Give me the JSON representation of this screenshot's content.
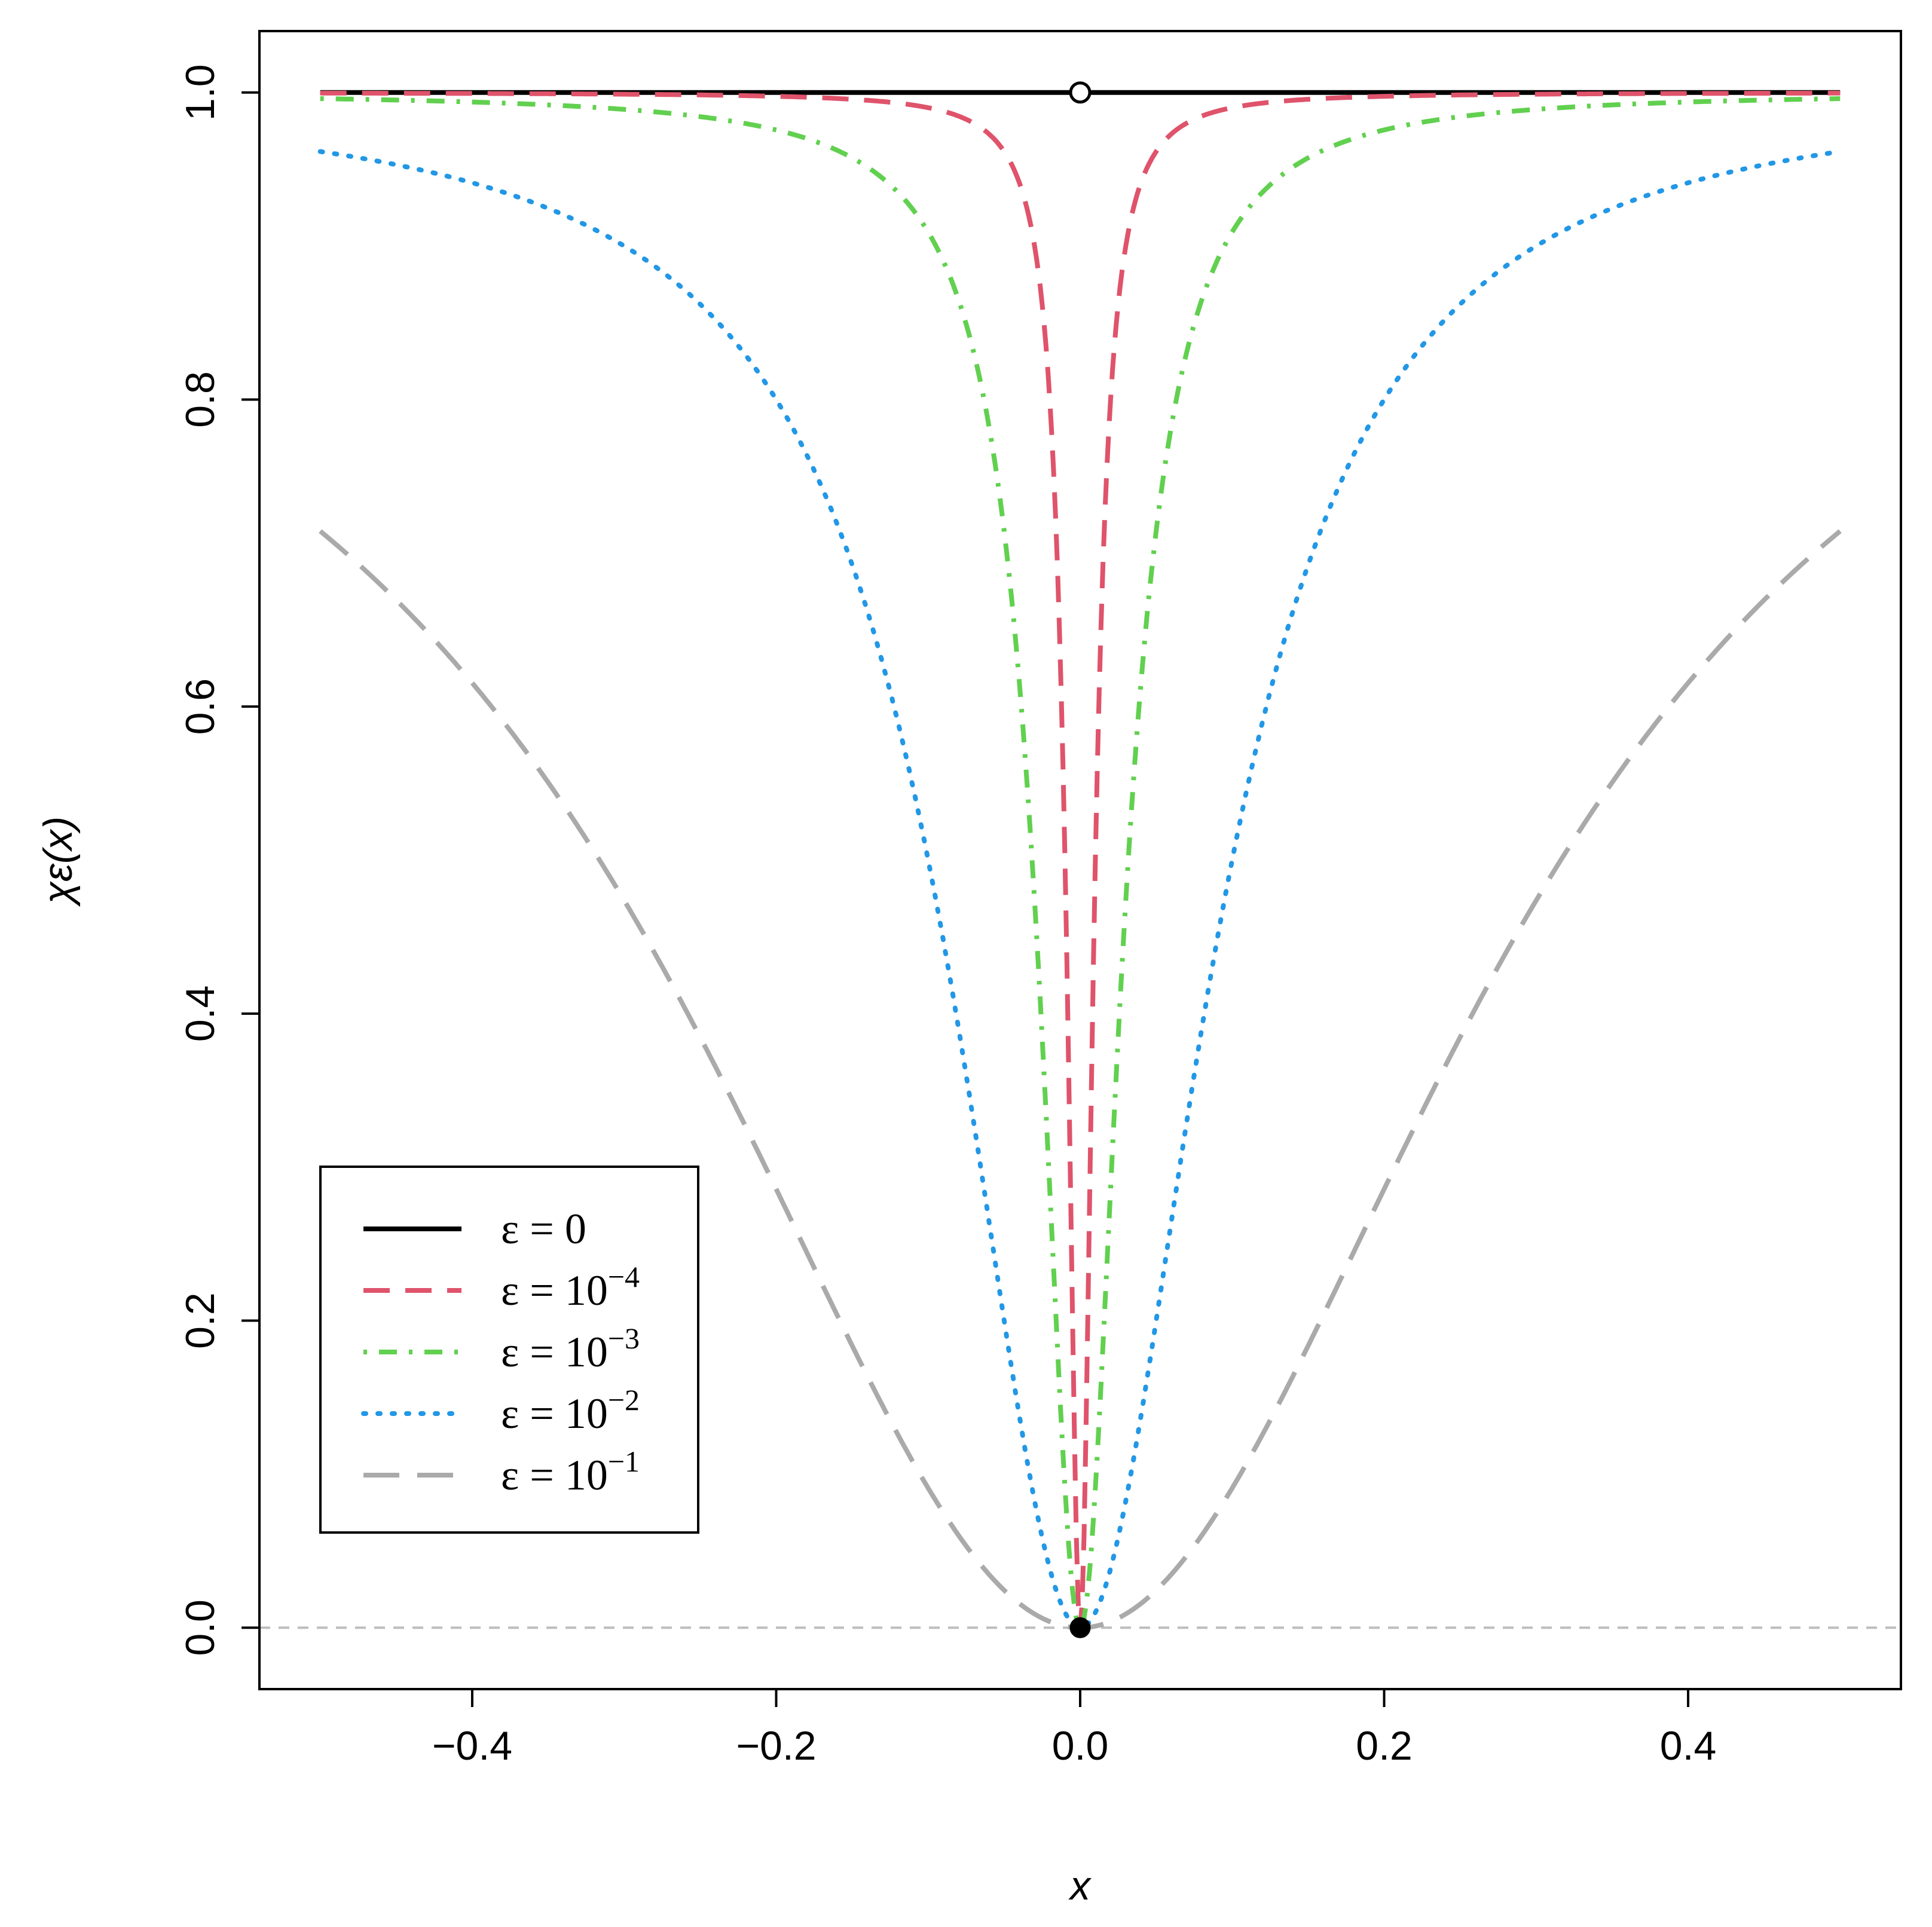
{
  "chart_data": {
    "type": "line",
    "xlabel": "x",
    "ylabel": "χε(x)",
    "xlim": [
      -0.54,
      0.54
    ],
    "ylim": [
      -0.04,
      1.04
    ],
    "xticks": [
      -0.4,
      -0.2,
      0.0,
      0.2,
      0.4
    ],
    "xtick_labels": [
      "−0.4",
      "−0.2",
      "0.0",
      "0.2",
      "0.4"
    ],
    "yticks": [
      0.0,
      0.2,
      0.4,
      0.6,
      0.8,
      1.0
    ],
    "ytick_labels": [
      "0.0",
      "0.2",
      "0.4",
      "0.6",
      "0.8",
      "1.0"
    ],
    "legend_position": "bottom-left",
    "reference_line": {
      "y": 0.0,
      "color": "#BEBEBE",
      "style": "dashed"
    },
    "series": [
      {
        "name": "ε = 0",
        "legend_base": "ε = 0",
        "legend_exp": "",
        "epsilon": 0,
        "color": "#000000",
        "style": "solid",
        "x_range": [
          -0.5,
          0.5
        ],
        "y_constant": 1.0,
        "open_point": [
          0.0,
          1.0
        ],
        "filled_point": [
          0.0,
          0.0
        ]
      },
      {
        "name": "ε = 10^−4",
        "legend_base": "ε = 10",
        "legend_exp": "−4",
        "epsilon": 0.0001,
        "color": "#DF536B",
        "style": "dashed",
        "formula": "x^2/(x^2+ε)",
        "x_range": [
          -0.5,
          0.5
        ],
        "x": [
          -0.5,
          -0.3,
          -0.1,
          -0.05,
          -0.03,
          -0.02,
          -0.01,
          0.0,
          0.01,
          0.02,
          0.03,
          0.05,
          0.1,
          0.3,
          0.5
        ],
        "y": [
          1.0,
          0.999,
          0.99,
          0.96,
          0.9,
          0.8,
          0.5,
          0.0,
          0.5,
          0.8,
          0.9,
          0.96,
          0.99,
          0.999,
          1.0
        ]
      },
      {
        "name": "ε = 10^−3",
        "legend_base": "ε = 10",
        "legend_exp": "−3",
        "epsilon": 0.001,
        "color": "#61D04F",
        "style": "dotdash",
        "formula": "x^2/(x^2+ε)",
        "x_range": [
          -0.5,
          0.5
        ],
        "x": [
          -0.5,
          -0.3,
          -0.1,
          -0.05,
          -0.03,
          0.0,
          0.03,
          0.05,
          0.1,
          0.3,
          0.5
        ],
        "y": [
          0.996,
          0.989,
          0.909,
          0.714,
          0.474,
          0.0,
          0.474,
          0.714,
          0.909,
          0.989,
          0.996
        ]
      },
      {
        "name": "ε = 10^−2",
        "legend_base": "ε = 10",
        "legend_exp": "−2",
        "epsilon": 0.01,
        "color": "#2297E6",
        "style": "dotted",
        "formula": "x^2/(x^2+ε)",
        "x_range": [
          -0.5,
          0.5
        ],
        "x": [
          -0.5,
          -0.3,
          -0.2,
          -0.1,
          -0.05,
          0.0,
          0.05,
          0.1,
          0.2,
          0.3,
          0.5
        ],
        "y": [
          0.962,
          0.9,
          0.8,
          0.5,
          0.2,
          0.0,
          0.2,
          0.5,
          0.8,
          0.9,
          0.962
        ]
      },
      {
        "name": "ε = 10^−1",
        "legend_base": "ε = 10",
        "legend_exp": "−1",
        "epsilon": 0.1,
        "color": "#AAAAAA",
        "style": "longdash",
        "formula": "x^2/(x^2+ε)",
        "x_range": [
          -0.5,
          0.5
        ],
        "x": [
          -0.5,
          -0.3,
          -0.2,
          -0.1,
          0.0,
          0.1,
          0.2,
          0.3,
          0.5
        ],
        "y": [
          0.714,
          0.474,
          0.286,
          0.091,
          0.0,
          0.091,
          0.286,
          0.474,
          0.714
        ]
      }
    ]
  }
}
